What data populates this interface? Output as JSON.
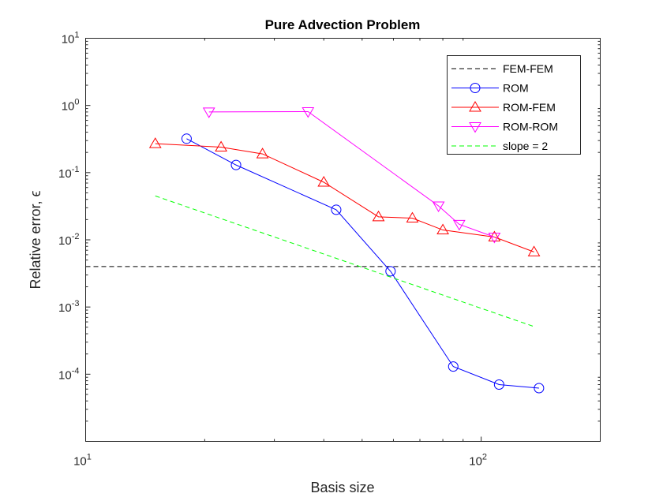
{
  "chart_data": {
    "type": "line",
    "title": "Pure Advection Problem",
    "xlabel": "Basis size",
    "ylabel": "Relative error, ϵ",
    "xscale": "log",
    "yscale": "log",
    "xlim": [
      10,
      200
    ],
    "ylim": [
      1e-05,
      10
    ],
    "x_ticks": [
      {
        "value": 10,
        "base": "10",
        "exp": "1"
      },
      {
        "value": 100,
        "base": "10",
        "exp": "2"
      }
    ],
    "y_ticks": [
      {
        "value": 0.0001,
        "base": "10",
        "exp": "-4"
      },
      {
        "value": 0.001,
        "base": "10",
        "exp": "-3"
      },
      {
        "value": 0.01,
        "base": "10",
        "exp": "-2"
      },
      {
        "value": 0.1,
        "base": "10",
        "exp": "-1"
      },
      {
        "value": 1,
        "base": "10",
        "exp": "0"
      },
      {
        "value": 10,
        "base": "10",
        "exp": "1"
      }
    ],
    "legend_position": "top-right",
    "series": [
      {
        "name": "FEM-FEM",
        "color": "#000000",
        "dash": "dashed",
        "marker": "none",
        "x": [
          10,
          200
        ],
        "y": [
          0.004,
          0.004
        ]
      },
      {
        "name": "ROM",
        "color": "#0000ff",
        "dash": "solid",
        "marker": "circle",
        "x": [
          18,
          24,
          43,
          59,
          85,
          111,
          140
        ],
        "y": [
          0.32,
          0.13,
          0.028,
          0.0034,
          0.00013,
          7e-05,
          6.2e-05
        ]
      },
      {
        "name": "ROM-FEM",
        "color": "#ff0000",
        "dash": "solid",
        "marker": "triangle-up",
        "x": [
          15,
          22,
          28,
          40,
          55,
          67,
          80,
          108,
          136
        ],
        "y": [
          0.27,
          0.24,
          0.19,
          0.072,
          0.022,
          0.021,
          0.014,
          0.011,
          0.0066
        ]
      },
      {
        "name": "ROM-ROM",
        "color": "#ff00ff",
        "dash": "solid",
        "marker": "triangle-down",
        "x": [
          20.5,
          36.5,
          78,
          88,
          108
        ],
        "y": [
          0.8,
          0.81,
          0.032,
          0.017,
          0.011
        ]
      },
      {
        "name": "slope = 2",
        "color": "#00ff00",
        "dash": "dashed",
        "marker": "none",
        "x": [
          15,
          135
        ],
        "y": [
          0.045,
          0.00052
        ]
      }
    ]
  }
}
